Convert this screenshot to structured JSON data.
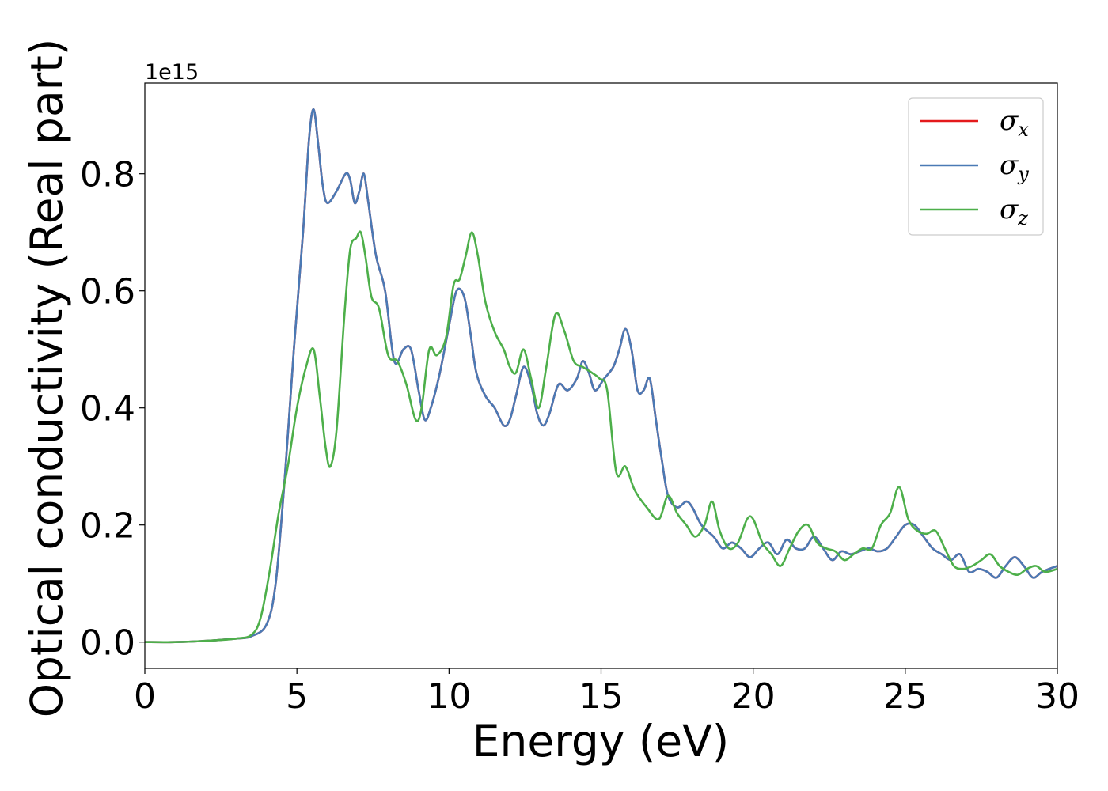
{
  "chart_data": {
    "type": "line",
    "xlabel": "Energy (eV)",
    "ylabel": "Optical conductivity (Real part)",
    "offset_text": "1e15",
    "xlim": [
      0,
      30
    ],
    "ylim": [
      -0.045,
      0.955
    ],
    "x_ticks": [
      0,
      5,
      10,
      15,
      20,
      25,
      30
    ],
    "x_tick_labels": [
      "0",
      "5",
      "10",
      "15",
      "20",
      "25",
      "30"
    ],
    "y_ticks": [
      0.0,
      0.2,
      0.4,
      0.6,
      0.8
    ],
    "y_tick_labels": [
      "0.0",
      "0.2",
      "0.4",
      "0.6",
      "0.8"
    ],
    "grid": false,
    "legend_position": "top-right",
    "series": [
      {
        "name": "σ_x",
        "legend_symbol": "σ",
        "legend_subscript": "x",
        "color": "#e41a1c",
        "x": [
          0,
          1,
          2,
          3,
          3.5,
          4,
          4.3,
          4.6,
          4.9,
          5.2,
          5.4,
          5.55,
          5.7,
          5.85,
          6.0,
          6.3,
          6.6,
          6.75,
          6.9,
          7.05,
          7.2,
          7.35,
          7.6,
          7.9,
          8.2,
          8.5,
          8.75,
          9.0,
          9.2,
          9.4,
          9.7,
          10.0,
          10.25,
          10.5,
          10.7,
          10.9,
          11.2,
          11.5,
          11.8,
          12.0,
          12.2,
          12.45,
          12.7,
          12.9,
          13.1,
          13.3,
          13.6,
          13.9,
          14.2,
          14.4,
          14.6,
          14.8,
          15.1,
          15.4,
          15.6,
          15.8,
          16.0,
          16.2,
          16.4,
          16.6,
          16.8,
          17.0,
          17.2,
          17.5,
          17.8,
          18.0,
          18.3,
          18.7,
          19.0,
          19.3,
          19.6,
          19.9,
          20.2,
          20.5,
          20.8,
          21.1,
          21.4,
          21.7,
          22.0,
          22.3,
          22.6,
          22.9,
          23.2,
          23.5,
          23.8,
          24.1,
          24.4,
          24.7,
          25.0,
          25.3,
          25.6,
          25.9,
          26.2,
          26.5,
          26.8,
          27.1,
          27.4,
          27.7,
          28.0,
          28.3,
          28.6,
          28.9,
          29.2,
          29.5,
          30.0
        ],
        "y": [
          0.0,
          0.0,
          0.002,
          0.006,
          0.01,
          0.03,
          0.1,
          0.28,
          0.5,
          0.7,
          0.86,
          0.91,
          0.85,
          0.78,
          0.75,
          0.77,
          0.8,
          0.79,
          0.75,
          0.77,
          0.8,
          0.75,
          0.66,
          0.6,
          0.48,
          0.5,
          0.5,
          0.43,
          0.38,
          0.4,
          0.46,
          0.54,
          0.6,
          0.59,
          0.53,
          0.46,
          0.42,
          0.4,
          0.37,
          0.38,
          0.42,
          0.47,
          0.44,
          0.39,
          0.37,
          0.39,
          0.44,
          0.43,
          0.45,
          0.48,
          0.46,
          0.43,
          0.45,
          0.47,
          0.5,
          0.535,
          0.5,
          0.43,
          0.43,
          0.45,
          0.38,
          0.31,
          0.25,
          0.23,
          0.24,
          0.23,
          0.2,
          0.18,
          0.16,
          0.17,
          0.16,
          0.145,
          0.16,
          0.17,
          0.15,
          0.175,
          0.16,
          0.16,
          0.18,
          0.16,
          0.14,
          0.155,
          0.15,
          0.155,
          0.16,
          0.155,
          0.16,
          0.18,
          0.2,
          0.2,
          0.18,
          0.16,
          0.15,
          0.14,
          0.15,
          0.12,
          0.125,
          0.12,
          0.11,
          0.13,
          0.145,
          0.13,
          0.11,
          0.12,
          0.13
        ]
      },
      {
        "name": "σ_y",
        "legend_symbol": "σ",
        "legend_subscript": "y",
        "color": "#4a7ab5",
        "x": [
          0,
          1,
          2,
          3,
          3.5,
          4,
          4.3,
          4.6,
          4.9,
          5.2,
          5.4,
          5.55,
          5.7,
          5.85,
          6.0,
          6.3,
          6.6,
          6.75,
          6.9,
          7.05,
          7.2,
          7.35,
          7.6,
          7.9,
          8.2,
          8.5,
          8.75,
          9.0,
          9.2,
          9.4,
          9.7,
          10.0,
          10.25,
          10.5,
          10.7,
          10.9,
          11.2,
          11.5,
          11.8,
          12.0,
          12.2,
          12.45,
          12.7,
          12.9,
          13.1,
          13.3,
          13.6,
          13.9,
          14.2,
          14.4,
          14.6,
          14.8,
          15.1,
          15.4,
          15.6,
          15.8,
          16.0,
          16.2,
          16.4,
          16.6,
          16.8,
          17.0,
          17.2,
          17.5,
          17.8,
          18.0,
          18.3,
          18.7,
          19.0,
          19.3,
          19.6,
          19.9,
          20.2,
          20.5,
          20.8,
          21.1,
          21.4,
          21.7,
          22.0,
          22.3,
          22.6,
          22.9,
          23.2,
          23.5,
          23.8,
          24.1,
          24.4,
          24.7,
          25.0,
          25.3,
          25.6,
          25.9,
          26.2,
          26.5,
          26.8,
          27.1,
          27.4,
          27.7,
          28.0,
          28.3,
          28.6,
          28.9,
          29.2,
          29.5,
          30.0
        ],
        "y": [
          0.0,
          0.0,
          0.002,
          0.006,
          0.01,
          0.03,
          0.1,
          0.28,
          0.5,
          0.7,
          0.86,
          0.91,
          0.85,
          0.78,
          0.75,
          0.77,
          0.8,
          0.79,
          0.75,
          0.77,
          0.8,
          0.75,
          0.66,
          0.6,
          0.48,
          0.5,
          0.5,
          0.43,
          0.38,
          0.4,
          0.46,
          0.54,
          0.6,
          0.59,
          0.53,
          0.46,
          0.42,
          0.4,
          0.37,
          0.38,
          0.42,
          0.47,
          0.44,
          0.39,
          0.37,
          0.39,
          0.44,
          0.43,
          0.45,
          0.48,
          0.46,
          0.43,
          0.45,
          0.47,
          0.5,
          0.535,
          0.5,
          0.43,
          0.43,
          0.45,
          0.38,
          0.31,
          0.25,
          0.23,
          0.24,
          0.23,
          0.2,
          0.18,
          0.16,
          0.17,
          0.16,
          0.145,
          0.16,
          0.17,
          0.15,
          0.175,
          0.16,
          0.16,
          0.18,
          0.16,
          0.14,
          0.155,
          0.15,
          0.155,
          0.16,
          0.155,
          0.16,
          0.18,
          0.2,
          0.2,
          0.18,
          0.16,
          0.15,
          0.14,
          0.15,
          0.12,
          0.125,
          0.12,
          0.11,
          0.13,
          0.145,
          0.13,
          0.11,
          0.12,
          0.13
        ]
      },
      {
        "name": "σ_z",
        "legend_symbol": "σ",
        "legend_subscript": "z",
        "color": "#4daf4a",
        "x": [
          0,
          1,
          2,
          3,
          3.5,
          3.8,
          4.1,
          4.4,
          4.7,
          5.0,
          5.3,
          5.55,
          5.75,
          5.95,
          6.1,
          6.3,
          6.55,
          6.75,
          6.95,
          7.1,
          7.25,
          7.45,
          7.7,
          8.0,
          8.3,
          8.6,
          8.9,
          9.1,
          9.35,
          9.6,
          9.9,
          10.15,
          10.35,
          10.55,
          10.75,
          10.95,
          11.2,
          11.5,
          11.8,
          12.0,
          12.2,
          12.45,
          12.7,
          12.95,
          13.2,
          13.5,
          13.8,
          14.1,
          14.4,
          14.7,
          14.95,
          15.2,
          15.5,
          15.8,
          16.1,
          16.5,
          16.9,
          17.2,
          17.5,
          17.8,
          18.1,
          18.4,
          18.65,
          18.9,
          19.2,
          19.5,
          19.8,
          20.0,
          20.3,
          20.6,
          20.9,
          21.2,
          21.5,
          21.8,
          22.1,
          22.4,
          22.7,
          23.0,
          23.3,
          23.6,
          23.9,
          24.2,
          24.5,
          24.8,
          25.1,
          25.4,
          25.7,
          26.0,
          26.3,
          26.6,
          26.9,
          27.2,
          27.5,
          27.8,
          28.1,
          28.4,
          28.7,
          29.0,
          29.3,
          29.6,
          30.0
        ],
        "y": [
          0.0,
          0.0,
          0.002,
          0.006,
          0.012,
          0.04,
          0.12,
          0.22,
          0.3,
          0.4,
          0.47,
          0.5,
          0.42,
          0.33,
          0.3,
          0.36,
          0.55,
          0.67,
          0.69,
          0.7,
          0.66,
          0.59,
          0.57,
          0.49,
          0.48,
          0.44,
          0.38,
          0.4,
          0.5,
          0.49,
          0.52,
          0.61,
          0.62,
          0.66,
          0.7,
          0.66,
          0.58,
          0.53,
          0.5,
          0.47,
          0.46,
          0.5,
          0.45,
          0.4,
          0.47,
          0.56,
          0.53,
          0.48,
          0.47,
          0.46,
          0.45,
          0.43,
          0.29,
          0.3,
          0.26,
          0.23,
          0.21,
          0.25,
          0.22,
          0.2,
          0.18,
          0.2,
          0.24,
          0.19,
          0.16,
          0.17,
          0.21,
          0.21,
          0.17,
          0.15,
          0.13,
          0.16,
          0.19,
          0.2,
          0.17,
          0.16,
          0.155,
          0.14,
          0.15,
          0.16,
          0.16,
          0.2,
          0.22,
          0.265,
          0.21,
          0.19,
          0.185,
          0.19,
          0.16,
          0.13,
          0.125,
          0.13,
          0.14,
          0.15,
          0.13,
          0.12,
          0.115,
          0.125,
          0.13,
          0.12,
          0.125
        ]
      }
    ]
  }
}
